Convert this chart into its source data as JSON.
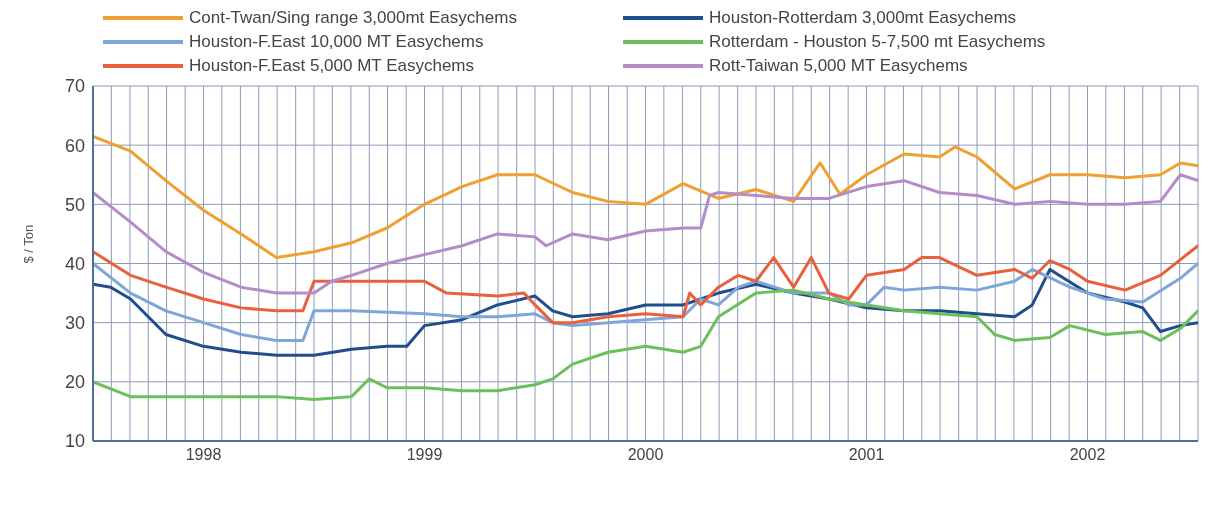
{
  "chart_data": {
    "type": "line",
    "ylabel": "$ / Ton",
    "ylim": [
      10,
      70
    ],
    "yticks": [
      10,
      20,
      30,
      40,
      50,
      60,
      70
    ],
    "xlim": [
      1998,
      2003
    ],
    "xticks": [
      {
        "value": 1998,
        "label": null
      },
      {
        "value": 1998.083,
        "label": null
      },
      {
        "value": 1998.167,
        "label": null
      },
      {
        "value": 1998.25,
        "label": null
      },
      {
        "value": 1998.333,
        "label": null
      },
      {
        "value": 1998.417,
        "label": null
      },
      {
        "value": 1998.5,
        "label": "1998"
      },
      {
        "value": 1998.583,
        "label": null
      },
      {
        "value": 1998.667,
        "label": null
      },
      {
        "value": 1998.75,
        "label": null
      },
      {
        "value": 1998.833,
        "label": null
      },
      {
        "value": 1998.917,
        "label": null
      },
      {
        "value": 1999,
        "label": null
      },
      {
        "value": 1999.083,
        "label": null
      },
      {
        "value": 1999.167,
        "label": null
      },
      {
        "value": 1999.25,
        "label": null
      },
      {
        "value": 1999.333,
        "label": null
      },
      {
        "value": 1999.417,
        "label": null
      },
      {
        "value": 1999.5,
        "label": "1999"
      },
      {
        "value": 1999.583,
        "label": null
      },
      {
        "value": 1999.667,
        "label": null
      },
      {
        "value": 1999.75,
        "label": null
      },
      {
        "value": 1999.833,
        "label": null
      },
      {
        "value": 1999.917,
        "label": null
      },
      {
        "value": 2000,
        "label": null
      },
      {
        "value": 2000.083,
        "label": null
      },
      {
        "value": 2000.167,
        "label": null
      },
      {
        "value": 2000.25,
        "label": null
      },
      {
        "value": 2000.333,
        "label": null
      },
      {
        "value": 2000.417,
        "label": null
      },
      {
        "value": 2000.5,
        "label": "2000"
      },
      {
        "value": 2000.583,
        "label": null
      },
      {
        "value": 2000.667,
        "label": null
      },
      {
        "value": 2000.75,
        "label": null
      },
      {
        "value": 2000.833,
        "label": null
      },
      {
        "value": 2000.917,
        "label": null
      },
      {
        "value": 2001,
        "label": null
      },
      {
        "value": 2001.083,
        "label": null
      },
      {
        "value": 2001.167,
        "label": null
      },
      {
        "value": 2001.25,
        "label": null
      },
      {
        "value": 2001.333,
        "label": null
      },
      {
        "value": 2001.417,
        "label": null
      },
      {
        "value": 2001.5,
        "label": "2001"
      },
      {
        "value": 2001.583,
        "label": null
      },
      {
        "value": 2001.667,
        "label": null
      },
      {
        "value": 2001.75,
        "label": null
      },
      {
        "value": 2001.833,
        "label": null
      },
      {
        "value": 2001.917,
        "label": null
      },
      {
        "value": 2002,
        "label": null
      },
      {
        "value": 2002.083,
        "label": null
      },
      {
        "value": 2002.167,
        "label": null
      },
      {
        "value": 2002.25,
        "label": null
      },
      {
        "value": 2002.333,
        "label": null
      },
      {
        "value": 2002.417,
        "label": null
      },
      {
        "value": 2002.5,
        "label": "2002"
      },
      {
        "value": 2002.583,
        "label": null
      },
      {
        "value": 2002.667,
        "label": null
      },
      {
        "value": 2002.75,
        "label": null
      },
      {
        "value": 2002.833,
        "label": null
      },
      {
        "value": 2002.917,
        "label": null
      },
      {
        "value": 2003,
        "label": null
      }
    ],
    "grid": true,
    "legend": "top",
    "marker": "none",
    "line_style": "solid",
    "series": [
      {
        "name": "Cont-Twan/Sing range 3,000mt Easychems",
        "color": "#f0a030",
        "x": [
          1998,
          1998.17,
          1998.33,
          1998.5,
          1998.67,
          1998.83,
          1999,
          1999.17,
          1999.33,
          1999.5,
          1999.67,
          1999.83,
          2000,
          2000.17,
          2000.33,
          2000.5,
          2000.67,
          2000.83,
          2001,
          2001.17,
          2001.29,
          2001.38,
          2001.5,
          2001.67,
          2001.83,
          2001.9,
          2002,
          2002.17,
          2002.33,
          2002.5,
          2002.67,
          2002.83,
          2002.92,
          2003
        ],
        "values": [
          61.5,
          59,
          54,
          49,
          45,
          41,
          42,
          43.5,
          46,
          50,
          53,
          55,
          55,
          52,
          50.5,
          50,
          53.5,
          51,
          52.5,
          50.5,
          57,
          51.7,
          55,
          58.5,
          58,
          59.7,
          58,
          52.6,
          55,
          55,
          54.5,
          55,
          57,
          56.5
        ]
      },
      {
        "name": "Houston-Rotterdam 3,000mt Easychems",
        "color": "#1f4e8c",
        "x": [
          1998,
          1998.08,
          1998.17,
          1998.33,
          1998.5,
          1998.67,
          1998.83,
          1999,
          1999.17,
          1999.33,
          1999.42,
          1999.5,
          1999.67,
          1999.83,
          2000,
          2000.08,
          2000.17,
          2000.33,
          2000.5,
          2000.67,
          2000.75,
          2000.83,
          2001,
          2001.17,
          2001.33,
          2001.5,
          2001.67,
          2001.83,
          2002,
          2002.17,
          2002.25,
          2002.33,
          2002.5,
          2002.67,
          2002.75,
          2002.83,
          2002.92,
          2003
        ],
        "values": [
          36.5,
          36,
          34,
          28,
          26,
          25,
          24.5,
          24.5,
          25.5,
          26,
          26,
          29.5,
          30.5,
          33,
          34.5,
          32,
          31,
          31.5,
          33,
          33,
          34,
          35,
          36.5,
          35,
          34,
          32.5,
          32,
          32,
          31.5,
          31,
          33,
          39,
          35,
          33.5,
          32.5,
          28.5,
          29.5,
          30
        ]
      },
      {
        "name": "Houston-F.East 10,000 MT Easychems",
        "color": "#7fa6d8",
        "x": [
          1998,
          1998.17,
          1998.33,
          1998.5,
          1998.67,
          1998.83,
          1998.95,
          1999,
          1999.17,
          1999.5,
          1999.67,
          1999.83,
          2000,
          2000.08,
          2000.17,
          2000.33,
          2000.5,
          2000.67,
          2000.75,
          2000.83,
          2000.92,
          2001,
          2001.17,
          2001.33,
          2001.42,
          2001.5,
          2001.58,
          2001.67,
          2001.83,
          2002,
          2002.17,
          2002.25,
          2002.42,
          2002.58,
          2002.75,
          2002.92,
          2003
        ],
        "values": [
          40,
          35,
          32,
          30,
          28,
          27,
          27,
          32,
          32,
          31.5,
          31,
          31,
          31.5,
          30,
          29.5,
          30,
          30.5,
          31,
          34,
          33,
          36,
          37,
          35,
          35,
          33,
          33,
          36,
          35.5,
          36,
          35.5,
          37,
          39,
          36,
          34,
          33.5,
          37.5,
          40
        ]
      },
      {
        "name": "Rotterdam - Houston 5-7,500 mt Easychems",
        "color": "#6cbf5a",
        "x": [
          1998,
          1998.17,
          1998.33,
          1998.5,
          1998.67,
          1998.83,
          1999,
          1999.17,
          1999.25,
          1999.33,
          1999.5,
          1999.67,
          1999.83,
          2000,
          2000.08,
          2000.17,
          2000.33,
          2000.5,
          2000.67,
          2000.75,
          2000.83,
          2001,
          2001.17,
          2001.33,
          2001.5,
          2001.67,
          2001.83,
          2002,
          2002.08,
          2002.17,
          2002.33,
          2002.42,
          2002.58,
          2002.75,
          2002.83,
          2002.92,
          2003
        ],
        "values": [
          20,
          17.5,
          17.5,
          17.5,
          17.5,
          17.5,
          17,
          17.5,
          20.5,
          19,
          19,
          18.5,
          18.5,
          19.5,
          20.5,
          23,
          25,
          26,
          25,
          26,
          31,
          35,
          35.5,
          34,
          33,
          32,
          31.5,
          31,
          28,
          27,
          27.5,
          29.5,
          28,
          28.5,
          27,
          29,
          32
        ]
      },
      {
        "name": "Houston-F.East 5,000 MT Easychems",
        "color": "#e8603c",
        "x": [
          1998,
          1998.17,
          1998.33,
          1998.5,
          1998.67,
          1998.83,
          1998.95,
          1999,
          1999.17,
          1999.33,
          1999.5,
          1999.6,
          1999.83,
          1999.95,
          2000,
          2000.08,
          2000.17,
          2000.33,
          2000.5,
          2000.67,
          2000.7,
          2000.75,
          2000.83,
          2000.92,
          2001,
          2001.08,
          2001.17,
          2001.25,
          2001.33,
          2001.42,
          2001.5,
          2001.67,
          2001.75,
          2001.83,
          2002,
          2002.17,
          2002.25,
          2002.33,
          2002.42,
          2002.5,
          2002.67,
          2002.83,
          2003
        ],
        "values": [
          42,
          38,
          36,
          34,
          32.5,
          32,
          32,
          37,
          37,
          37,
          37,
          35,
          34.5,
          35,
          33,
          30,
          30,
          31,
          31.5,
          31,
          35,
          33,
          36,
          38,
          37,
          41,
          36,
          41,
          35,
          34,
          38,
          39,
          41,
          41,
          38,
          39,
          37.5,
          40.5,
          39,
          37,
          35.5,
          38,
          43
        ]
      },
      {
        "name": "Rott-Taiwan 5,000 MT Easychems",
        "color": "#b48cc8",
        "x": [
          1998,
          1998.17,
          1998.33,
          1998.5,
          1998.67,
          1998.83,
          1999,
          1999.08,
          1999.17,
          1999.33,
          1999.5,
          1999.67,
          1999.83,
          2000,
          2000.05,
          2000.17,
          2000.33,
          2000.5,
          2000.67,
          2000.75,
          2000.79,
          2000.83,
          2001,
          2001.17,
          2001.33,
          2001.5,
          2001.67,
          2001.83,
          2002,
          2002.17,
          2002.33,
          2002.5,
          2002.67,
          2002.83,
          2002.92,
          2003
        ],
        "values": [
          52,
          47,
          42,
          38.5,
          36,
          35,
          35,
          37,
          38,
          40,
          41.5,
          43,
          45,
          44.5,
          43,
          45,
          44,
          45.5,
          46,
          46,
          51.5,
          52,
          51.5,
          51,
          51,
          53,
          54,
          52,
          51.5,
          50,
          50.5,
          50,
          50,
          50.5,
          55,
          54
        ]
      }
    ]
  }
}
